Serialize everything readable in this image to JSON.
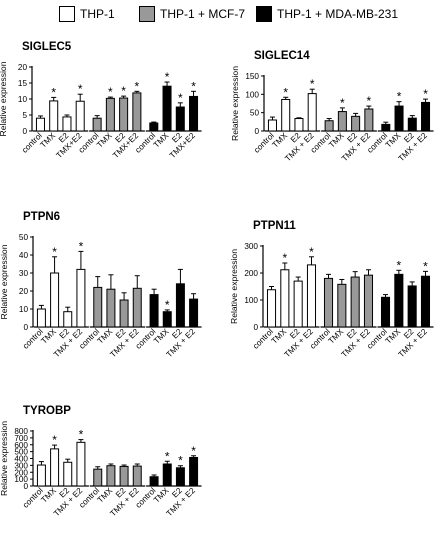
{
  "legend": [
    {
      "label": "THP-1",
      "color": "#ffffff"
    },
    {
      "label": "THP-1 + MCF-7",
      "color": "#999999"
    },
    {
      "label": "THP-1 + MDA-MB-231",
      "color": "#000000"
    }
  ],
  "chart_data": [
    {
      "type": "bar",
      "title": "SIGLEC5",
      "ylabel": "Relative expression",
      "ylim": [
        0,
        20
      ],
      "yticks": [
        0,
        5,
        10,
        15,
        20
      ],
      "categories": [
        "control",
        "TMX",
        "E2",
        "TMX+E2"
      ],
      "series": [
        {
          "name": "THP-1",
          "values": [
            4,
            9.4,
            4.4,
            9.3
          ],
          "errors": [
            0.7,
            1.1,
            0.6,
            2.2
          ],
          "sig": [
            false,
            true,
            false,
            true
          ]
        },
        {
          "name": "THP-1 + MCF-7",
          "values": [
            4,
            10.2,
            10.3,
            11.9
          ],
          "errors": [
            0.8,
            0.4,
            0.6,
            0.5
          ],
          "sig": [
            false,
            true,
            true,
            true
          ]
        },
        {
          "name": "THP-1 + MDA-MB-231",
          "values": [
            2.5,
            14,
            7.5,
            10.8
          ],
          "errors": [
            0.3,
            1.3,
            1.3,
            1.6
          ],
          "sig": [
            false,
            true,
            true,
            true
          ]
        }
      ],
      "sig_symbol": "*"
    },
    {
      "type": "bar",
      "title": "SIGLEC14",
      "ylabel": "Relative expression",
      "ylim": [
        0,
        150
      ],
      "yticks": [
        0,
        50,
        100,
        150
      ],
      "categories": [
        "control",
        "TMX",
        "E2",
        "TMX + E2"
      ],
      "series": [
        {
          "name": "THP-1",
          "values": [
            30,
            86,
            34,
            102
          ],
          "errors": [
            8,
            6,
            2,
            12
          ],
          "sig": [
            false,
            true,
            false,
            true
          ]
        },
        {
          "name": "THP-1 + MCF-7",
          "values": [
            28,
            53,
            40,
            60
          ],
          "errors": [
            6,
            10,
            8,
            8
          ],
          "sig": [
            false,
            true,
            false,
            true
          ]
        },
        {
          "name": "THP-1 + MDA-MB-231",
          "values": [
            18,
            68,
            35,
            78
          ],
          "errors": [
            6,
            12,
            7,
            9
          ],
          "sig": [
            false,
            true,
            false,
            true
          ]
        }
      ],
      "sig_symbol": "*"
    },
    {
      "type": "bar",
      "title": "PTPN6",
      "ylabel": "Relative expression",
      "ylim": [
        0,
        50
      ],
      "yticks": [
        0,
        10,
        20,
        30,
        40,
        50
      ],
      "categories": [
        "control",
        "TMX",
        "E2",
        "TMX + E2"
      ],
      "series": [
        {
          "name": "THP-1",
          "values": [
            10,
            30,
            8.5,
            32
          ],
          "errors": [
            2,
            9,
            2.5,
            10
          ],
          "sig": [
            false,
            true,
            false,
            true
          ]
        },
        {
          "name": "THP-1 + MCF-7",
          "values": [
            22,
            21,
            15,
            21.5
          ],
          "errors": [
            6,
            8,
            4,
            7
          ],
          "sig": [
            false,
            false,
            false,
            false
          ]
        },
        {
          "name": "THP-1 + MDA-MB-231",
          "values": [
            18,
            8.5,
            24,
            15.5
          ],
          "errors": [
            3,
            1,
            8,
            3
          ],
          "sig": [
            false,
            true,
            false,
            false
          ]
        }
      ],
      "sig_symbol": "*"
    },
    {
      "type": "bar",
      "title": "PTPN11",
      "ylabel": "Relative expression",
      "ylim": [
        0,
        300
      ],
      "yticks": [
        0,
        100,
        200,
        300
      ],
      "categories": [
        "control",
        "TMX",
        "E2",
        "TMX + E2"
      ],
      "series": [
        {
          "name": "THP-1",
          "values": [
            138,
            212,
            170,
            230
          ],
          "errors": [
            12,
            25,
            15,
            30
          ],
          "sig": [
            false,
            true,
            false,
            true
          ]
        },
        {
          "name": "THP-1 + MCF-7",
          "values": [
            180,
            158,
            185,
            192
          ],
          "errors": [
            15,
            18,
            20,
            20
          ],
          "sig": [
            false,
            false,
            false,
            false
          ]
        },
        {
          "name": "THP-1 + MDA-MB-231",
          "values": [
            110,
            195,
            152,
            188
          ],
          "errors": [
            10,
            15,
            15,
            18
          ],
          "sig": [
            false,
            true,
            false,
            true
          ]
        }
      ],
      "sig_symbol": "*"
    },
    {
      "type": "bar",
      "title": "TYROBP",
      "ylabel": "Relative expression",
      "ylim": [
        0,
        800
      ],
      "yticks": [
        0,
        100,
        200,
        300,
        400,
        500,
        600,
        700,
        800
      ],
      "categories": [
        "control",
        "TMX",
        "E2",
        "TMX + E2"
      ],
      "series": [
        {
          "name": "THP-1",
          "values": [
            305,
            540,
            345,
            635
          ],
          "errors": [
            50,
            55,
            45,
            40
          ],
          "sig": [
            false,
            true,
            false,
            true
          ]
        },
        {
          "name": "THP-1 + MCF-7",
          "values": [
            245,
            295,
            285,
            290
          ],
          "errors": [
            35,
            25,
            20,
            30
          ],
          "sig": [
            false,
            false,
            false,
            false
          ]
        },
        {
          "name": "THP-1 + MDA-MB-231",
          "values": [
            135,
            320,
            265,
            415
          ],
          "errors": [
            25,
            40,
            30,
            25
          ],
          "sig": [
            false,
            true,
            true,
            true
          ]
        }
      ],
      "sig_symbol": "*"
    }
  ]
}
